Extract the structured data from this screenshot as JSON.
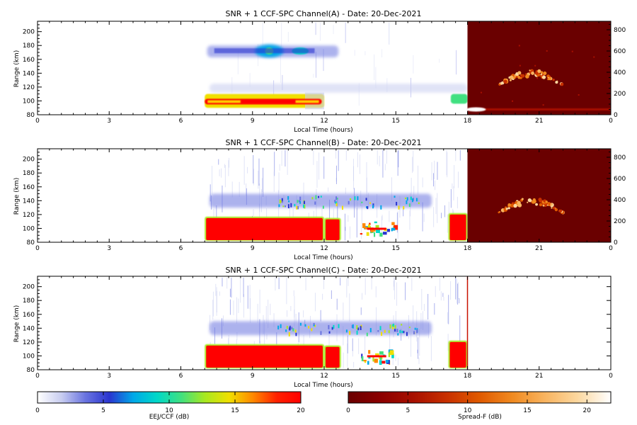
{
  "colors": {
    "frame": "#000000",
    "background": "#ffffff",
    "eej_scale": [
      "#ffffff",
      "#c8cdf0",
      "#6a74e0",
      "#2a35d0",
      "#00a8e8",
      "#00d8c8",
      "#40e080",
      "#a8e820",
      "#f0e000",
      "#ff8800",
      "#ff2000",
      "#ff0000"
    ],
    "spreadf_scale": [
      "#6a0000",
      "#8c0000",
      "#a81000",
      "#c83000",
      "#e05a00",
      "#f08a20",
      "#f8b460",
      "#fcd8a0",
      "#ffffff"
    ]
  },
  "chart_data": [
    {
      "type": "heatmap",
      "title": "SNR + 1 CCF-SPC Channel(A) - Date: 20-Dec-2021",
      "xlabel": "Local Time (hours)",
      "ylabel": "Range (km)",
      "xlim": [
        0,
        24
      ],
      "ylim": [
        80,
        215
      ],
      "xticks": [
        "0",
        "3",
        "6",
        "9",
        "12",
        "15",
        "18",
        "21",
        "0"
      ],
      "yticks": [
        "80",
        "100",
        "120",
        "140",
        "160",
        "180",
        "200"
      ],
      "right_axis": {
        "ylim": [
          0,
          880
        ],
        "ticks": [
          "0",
          "200",
          "400",
          "600",
          "800"
        ]
      },
      "spread_f_panel": {
        "x_range": [
          18,
          24
        ],
        "shown": true
      },
      "features": [
        {
          "kind": "eej_band",
          "x": [
            7.0,
            12.0
          ],
          "y": [
            90,
            110
          ],
          "level_db": 15,
          "gap": [
            11.2,
            12.0
          ]
        },
        {
          "kind": "eej_band",
          "x": [
            7.0,
            11.9
          ],
          "y": [
            95,
            103
          ],
          "level_db": 20
        },
        {
          "kind": "eej_band",
          "x": [
            17.3,
            18.0
          ],
          "y": [
            96,
            110
          ],
          "level_db": 10
        },
        {
          "kind": "ccf_band",
          "x": [
            7.1,
            12.6
          ],
          "y": [
            163,
            180
          ],
          "level_db": 3
        },
        {
          "kind": "ccf_band",
          "x": [
            7.2,
            18.0
          ],
          "y": [
            112,
            125
          ],
          "level_db": 1
        },
        {
          "kind": "spread_f_echo",
          "x": [
            19.3,
            22.0
          ],
          "y": [
            240,
            400
          ]
        },
        {
          "kind": "spread_f_line",
          "x": [
            18.0,
            24.0
          ],
          "y": [
            40,
            60
          ]
        }
      ]
    },
    {
      "type": "heatmap",
      "title": "SNR + 1 CCF-SPC Channel(B) - Date: 20-Dec-2021",
      "xlabel": "Local Time (hours)",
      "ylabel": "Range (km)",
      "xlim": [
        0,
        24
      ],
      "ylim": [
        80,
        215
      ],
      "xticks": [
        "0",
        "3",
        "6",
        "9",
        "12",
        "15",
        "18",
        "21",
        "0"
      ],
      "yticks": [
        "80",
        "100",
        "120",
        "140",
        "160",
        "180",
        "200"
      ],
      "right_axis": {
        "ylim": [
          0,
          880
        ],
        "ticks": [
          "0",
          "200",
          "400",
          "600",
          "800"
        ]
      },
      "spread_f_panel": {
        "x_range": [
          18,
          24
        ],
        "shown": true
      },
      "features": [
        {
          "kind": "eej_block",
          "x": [
            7.0,
            12.0
          ],
          "y": [
            82,
            117
          ],
          "level_db": 20
        },
        {
          "kind": "eej_block",
          "x": [
            12.0,
            12.7
          ],
          "y": [
            82,
            115
          ],
          "level_db": 20
        },
        {
          "kind": "eej_block",
          "x": [
            17.2,
            18.0
          ],
          "y": [
            82,
            122
          ],
          "level_db": 20
        },
        {
          "kind": "eej_patch",
          "x": [
            13.5,
            15.0
          ],
          "y": [
            92,
            110
          ],
          "level_db": 12
        },
        {
          "kind": "ccf_band",
          "x": [
            7.2,
            16.5
          ],
          "y": [
            130,
            150
          ],
          "level_db": 4
        }
      ]
    },
    {
      "type": "heatmap",
      "title": "SNR + 1 CCF-SPC Channel(C) - Date: 20-Dec-2021",
      "xlabel": "Local Time (hours)",
      "ylabel": "Range (km)",
      "xlim": [
        0,
        24
      ],
      "ylim": [
        80,
        215
      ],
      "xticks": [
        "0",
        "3",
        "6",
        "9",
        "12",
        "15",
        "18",
        "21",
        "0"
      ],
      "yticks": [
        "80",
        "100",
        "120",
        "140",
        "160",
        "180",
        "200"
      ],
      "spread_f_panel": {
        "x_range": [
          18,
          24
        ],
        "shown": false
      },
      "features": [
        {
          "kind": "eej_block",
          "x": [
            7.0,
            12.0
          ],
          "y": [
            82,
            117
          ],
          "level_db": 20
        },
        {
          "kind": "eej_block",
          "x": [
            12.0,
            12.7
          ],
          "y": [
            82,
            115
          ],
          "level_db": 20
        },
        {
          "kind": "eej_block",
          "x": [
            17.2,
            18.0
          ],
          "y": [
            82,
            122
          ],
          "level_db": 20
        },
        {
          "kind": "eej_patch",
          "x": [
            13.5,
            15.0
          ],
          "y": [
            92,
            110
          ],
          "level_db": 12
        },
        {
          "kind": "ccf_band",
          "x": [
            7.2,
            16.5
          ],
          "y": [
            130,
            150
          ],
          "level_db": 4
        }
      ]
    }
  ],
  "colorbars": [
    {
      "label": "EEJ/CCF (dB)",
      "range": [
        0,
        20
      ],
      "ticks": [
        "0",
        "5",
        "10",
        "15",
        "20"
      ]
    },
    {
      "label": "Spread-F (dB)",
      "range": [
        0,
        22
      ],
      "ticks": [
        "0",
        "5",
        "10",
        "15",
        "20"
      ]
    }
  ]
}
